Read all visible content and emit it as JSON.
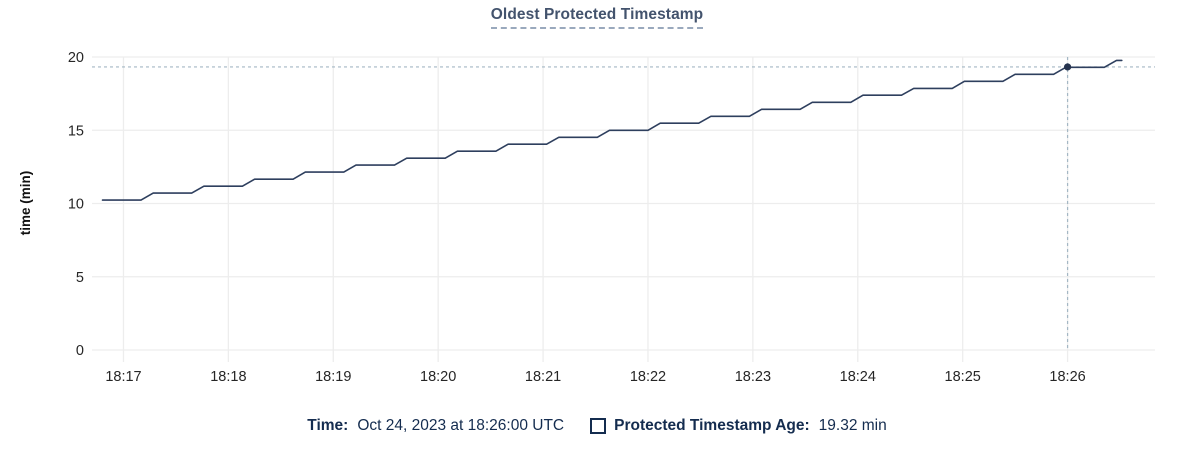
{
  "title": "Oldest Protected Timestamp",
  "legend": {
    "time_label": "Time:",
    "time_value": "Oct 24, 2023 at 18:26:00 UTC",
    "series_label": "Protected Timestamp Age:",
    "series_value": "19.32 min"
  },
  "colors": {
    "title": "#43536d",
    "title_underline": "#9aa9bd",
    "line": "#2e3f5e",
    "dot": "#26334e",
    "crosshair": "#a4b7c4",
    "grid": "#ededed",
    "legend_text": "#142c4f",
    "tick_text": "#262626",
    "ylabel_text": "#111111"
  },
  "chart_data": {
    "type": "line",
    "title": "Oldest Protected Timestamp",
    "xlabel": "",
    "ylabel": "time (min)",
    "ylim": [
      0,
      20
    ],
    "yticks": [
      0,
      5,
      10,
      15,
      20
    ],
    "x_domain_seconds": [
      -18,
      590
    ],
    "x_reference_time": "18:17",
    "grid": "on",
    "legend_position": "bottom",
    "xticks": [
      {
        "t": 0,
        "label": "18:17"
      },
      {
        "t": 60,
        "label": "18:18"
      },
      {
        "t": 120,
        "label": "18:19"
      },
      {
        "t": 180,
        "label": "18:20"
      },
      {
        "t": 240,
        "label": "18:21"
      },
      {
        "t": 300,
        "label": "18:22"
      },
      {
        "t": 360,
        "label": "18:23"
      },
      {
        "t": 420,
        "label": "18:24"
      },
      {
        "t": 480,
        "label": "18:25"
      },
      {
        "t": 540,
        "label": "18:26"
      }
    ],
    "series": [
      {
        "name": "Protected Timestamp Age",
        "unit": "min",
        "points": [
          [
            -12,
            10.23
          ],
          [
            10,
            10.23
          ],
          [
            17,
            10.71
          ],
          [
            39,
            10.71
          ],
          [
            46,
            11.18
          ],
          [
            68,
            11.18
          ],
          [
            75,
            11.66
          ],
          [
            97,
            11.66
          ],
          [
            104,
            12.14
          ],
          [
            126,
            12.14
          ],
          [
            133,
            12.62
          ],
          [
            155,
            12.62
          ],
          [
            162,
            13.09
          ],
          [
            184,
            13.09
          ],
          [
            191,
            13.57
          ],
          [
            213,
            13.57
          ],
          [
            220,
            14.05
          ],
          [
            242,
            14.05
          ],
          [
            249,
            14.52
          ],
          [
            271,
            14.52
          ],
          [
            278,
            15.0
          ],
          [
            300,
            15.0
          ],
          [
            307,
            15.48
          ],
          [
            329,
            15.48
          ],
          [
            336,
            15.95
          ],
          [
            358,
            15.95
          ],
          [
            365,
            16.43
          ],
          [
            387,
            16.43
          ],
          [
            394,
            16.91
          ],
          [
            416,
            16.91
          ],
          [
            423,
            17.39
          ],
          [
            445,
            17.39
          ],
          [
            452,
            17.86
          ],
          [
            474,
            17.86
          ],
          [
            481,
            18.34
          ],
          [
            503,
            18.34
          ],
          [
            510,
            18.82
          ],
          [
            532,
            18.82
          ],
          [
            539,
            19.3
          ],
          [
            561,
            19.3
          ],
          [
            568,
            19.77
          ],
          [
            571,
            19.77
          ]
        ]
      }
    ],
    "hover": {
      "t": 540,
      "value": 19.32,
      "time_label": "18:26:00",
      "value_label": "19.32 min"
    }
  }
}
